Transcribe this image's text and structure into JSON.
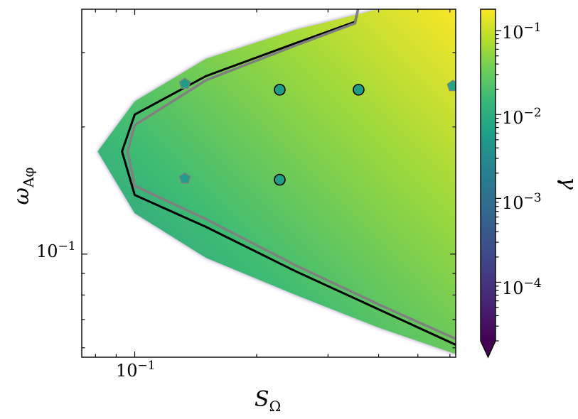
{
  "chart_data": {
    "type": "heatmap",
    "title": "",
    "xlabel": {
      "base": "S",
      "sub": "Ω"
    },
    "ylabel": {
      "base": "ω",
      "sub": "Aφ"
    },
    "xscale": "log",
    "yscale": "log",
    "xlim": [
      0.074,
      0.62
    ],
    "ylim": [
      0.057,
      0.38
    ],
    "x_ticks": [
      {
        "value": 0.1,
        "base": "10",
        "exp": "−1"
      }
    ],
    "y_ticks": [
      {
        "value": 0.1,
        "base": "10",
        "exp": "−1"
      }
    ],
    "colorbar": {
      "label": "γ",
      "scale": "log",
      "colormap": "viridis",
      "range": [
        2e-05,
        0.18
      ],
      "extend": "min",
      "ticks": [
        {
          "value": 0.0001,
          "base": "10",
          "exp": "−4"
        },
        {
          "value": 0.001,
          "base": "10",
          "exp": "−3"
        },
        {
          "value": 0.01,
          "base": "10",
          "exp": "−2"
        },
        {
          "value": 0.1,
          "base": "10",
          "exp": "−1"
        }
      ]
    },
    "unstable_region": {
      "vertex": [
        0.081,
        0.175
      ],
      "upper_branch": [
        [
          0.081,
          0.175
        ],
        [
          0.1,
          0.23
        ],
        [
          0.15,
          0.29
        ],
        [
          0.25,
          0.34
        ],
        [
          0.4,
          0.38
        ],
        [
          0.62,
          0.4
        ]
      ],
      "lower_branch": [
        [
          0.081,
          0.175
        ],
        [
          0.1,
          0.125
        ],
        [
          0.15,
          0.098
        ],
        [
          0.25,
          0.08
        ],
        [
          0.4,
          0.067
        ],
        [
          0.62,
          0.058
        ]
      ]
    },
    "curves": [
      {
        "color": "#000000",
        "points": [
          [
            0.093,
            0.175
          ],
          [
            0.1,
            0.214
          ],
          [
            0.15,
            0.264
          ],
          [
            0.25,
            0.316
          ],
          [
            0.35,
            0.355
          ],
          [
            0.36,
            0.4
          ],
          [
            0.4,
            0.42
          ]
        ],
        "lower": [
          [
            0.093,
            0.175
          ],
          [
            0.1,
            0.138
          ],
          [
            0.15,
            0.116
          ],
          [
            0.25,
            0.091
          ],
          [
            0.4,
            0.074
          ],
          [
            0.62,
            0.061
          ]
        ]
      },
      {
        "color": "#808080",
        "points": [
          [
            0.096,
            0.175
          ],
          [
            0.1,
            0.202
          ],
          [
            0.15,
            0.258
          ],
          [
            0.25,
            0.312
          ],
          [
            0.35,
            0.352
          ],
          [
            0.36,
            0.4
          ]
        ],
        "lower": [
          [
            0.096,
            0.175
          ],
          [
            0.1,
            0.145
          ],
          [
            0.15,
            0.121
          ],
          [
            0.25,
            0.094
          ],
          [
            0.4,
            0.076
          ],
          [
            0.62,
            0.063
          ]
        ]
      }
    ],
    "markers": [
      {
        "shape": "pentagon",
        "x": 0.133,
        "y": 0.253,
        "value": 0.003
      },
      {
        "shape": "circle",
        "x": 0.228,
        "y": 0.245,
        "value": 0.003
      },
      {
        "shape": "circle",
        "x": 0.357,
        "y": 0.245,
        "value": 0.003
      },
      {
        "shape": "pentagon",
        "x": 0.61,
        "y": 0.25,
        "value": 0.004
      },
      {
        "shape": "pentagon",
        "x": 0.133,
        "y": 0.151,
        "value": 0.003
      },
      {
        "shape": "circle",
        "x": 0.228,
        "y": 0.15,
        "value": 0.003
      }
    ]
  }
}
